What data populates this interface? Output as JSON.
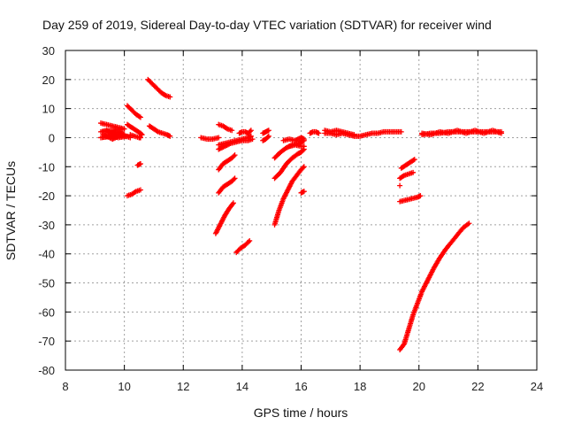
{
  "chart_data": {
    "type": "scatter",
    "title": "Day 259 of 2019, Sidereal Day-to-day VTEC variation (SDTVAR) for receiver wind",
    "xlabel": "GPS time / hours",
    "ylabel": "SDTVAR / TECUs",
    "xlim": [
      8,
      24
    ],
    "ylim": [
      -80,
      30
    ],
    "xticks": [
      "8",
      "10",
      "12",
      "14",
      "16",
      "18",
      "20",
      "22",
      "24"
    ],
    "yticks": [
      "30",
      "20",
      "10",
      "0",
      "-10",
      "-20",
      "-30",
      "-40",
      "-50",
      "-60",
      "-70",
      "-80"
    ],
    "grid": true,
    "marker": "+",
    "color": "#ff0000",
    "series": [
      {
        "x": [
          9.2,
          9.4,
          9.6,
          9.8,
          10.0,
          9.2,
          9.4,
          9.6,
          9.8,
          10.0,
          9.2,
          9.5,
          9.8,
          10.1,
          9.3,
          9.6,
          9.9,
          10.2
        ],
        "y": [
          5,
          4.5,
          4,
          3.5,
          3,
          2,
          2.5,
          1.5,
          2,
          1,
          0,
          0.5,
          0,
          0.5,
          1,
          -0.5,
          1,
          0
        ]
      },
      {
        "x": [
          10.1,
          10.25,
          10.4,
          10.55
        ],
        "y": [
          11,
          9.5,
          8,
          7
        ]
      },
      {
        "x": [
          10.1,
          10.25,
          10.4,
          10.55,
          10.6
        ],
        "y": [
          4.5,
          3.5,
          2.5,
          1.5,
          1
        ]
      },
      {
        "x": [
          10.2,
          10.35,
          10.5,
          10.55
        ],
        "y": [
          1,
          0.5,
          0,
          0
        ]
      },
      {
        "x": [
          10.45,
          10.55
        ],
        "y": [
          -9.5,
          -9
        ]
      },
      {
        "x": [
          10.1,
          10.25,
          10.4,
          10.55
        ],
        "y": [
          -20,
          -19.5,
          -18.5,
          -18
        ]
      },
      {
        "x": [
          10.8,
          10.95,
          11.1,
          11.25,
          11.4,
          11.55
        ],
        "y": [
          20,
          18.5,
          17,
          15.5,
          14.5,
          14
        ]
      },
      {
        "x": [
          10.85,
          11.0,
          11.15,
          11.3,
          11.45,
          11.55
        ],
        "y": [
          4,
          3,
          2,
          1.5,
          1,
          0.5
        ]
      },
      {
        "x": [
          12.6,
          12.8,
          13.0,
          13.2
        ],
        "y": [
          0,
          -0.5,
          -0.5,
          0
        ]
      },
      {
        "x": [
          13.2,
          13.35,
          13.5,
          13.65
        ],
        "y": [
          4.5,
          4,
          3,
          2.5
        ]
      },
      {
        "x": [
          13.2,
          13.4,
          13.6,
          13.8,
          14.0,
          14.2,
          14.35
        ],
        "y": [
          -4,
          -3,
          -2,
          -1.5,
          -1,
          -1,
          -0.5
        ]
      },
      {
        "x": [
          13.2,
          13.4,
          13.6,
          13.8,
          14.0,
          14.2,
          14.3
        ],
        "y": [
          -2.5,
          -2,
          -1.5,
          -1,
          -0.5,
          0,
          0.5
        ]
      },
      {
        "x": [
          13.2,
          13.35,
          13.5,
          13.65,
          13.75
        ],
        "y": [
          -11,
          -9,
          -8,
          -7,
          -6
        ]
      },
      {
        "x": [
          13.2,
          13.35,
          13.5,
          13.65,
          13.75
        ],
        "y": [
          -19,
          -17,
          -16,
          -15,
          -14
        ]
      },
      {
        "x": [
          13.1,
          13.25,
          13.4,
          13.55,
          13.7
        ],
        "y": [
          -33,
          -30,
          -27,
          -24.5,
          -22.5
        ]
      },
      {
        "x": [
          13.8,
          13.95,
          14.1,
          14.25
        ],
        "y": [
          -39.5,
          -38,
          -37,
          -35.5
        ]
      },
      {
        "x": [
          13.9,
          14.0,
          14.1,
          14.2,
          14.3
        ],
        "y": [
          1.5,
          2,
          2,
          1.5,
          2.5
        ]
      },
      {
        "x": [
          14.7,
          14.8,
          14.9
        ],
        "y": [
          1.5,
          2,
          2.5
        ]
      },
      {
        "x": [
          14.7,
          14.8,
          14.9
        ],
        "y": [
          -1,
          -0.5,
          0.5
        ]
      },
      {
        "x": [
          15.1,
          15.3,
          15.5,
          15.7,
          15.9,
          16.0,
          16.1
        ],
        "y": [
          -7,
          -5,
          -3.5,
          -2.5,
          -2,
          -1.5,
          -1
        ]
      },
      {
        "x": [
          15.1,
          15.3,
          15.5,
          15.7,
          15.9,
          16.0,
          16.1
        ],
        "y": [
          -14,
          -12,
          -9,
          -7,
          -5.5,
          -5,
          -4
        ]
      },
      {
        "x": [
          15.1,
          15.25,
          15.4,
          15.55,
          15.7,
          15.85,
          16.0,
          16.1
        ],
        "y": [
          -30,
          -25,
          -21,
          -18,
          -15,
          -13,
          -11,
          -10
        ]
      },
      {
        "x": [
          15.4,
          15.6,
          15.8,
          16.0,
          16.1
        ],
        "y": [
          -1,
          -0.5,
          -1,
          0,
          -0.5
        ]
      },
      {
        "x": [
          15.6,
          15.8,
          16.0,
          16.1
        ],
        "y": [
          -3,
          -2.5,
          -3,
          -3
        ]
      },
      {
        "x": [
          16.0,
          16.1
        ],
        "y": [
          -19,
          -18.5
        ]
      },
      {
        "x": [
          16.3,
          16.4,
          16.5,
          16.6
        ],
        "y": [
          1.5,
          2,
          2,
          1.5
        ]
      },
      {
        "x": [
          16.8,
          17.0,
          17.2,
          17.4,
          17.6,
          17.8,
          18.0,
          18.2,
          18.4,
          18.6,
          18.8,
          19.0,
          19.2,
          19.4
        ],
        "y": [
          1.5,
          1.5,
          1,
          1.5,
          1,
          0.5,
          0.5,
          1,
          1.5,
          1.5,
          2,
          2,
          2,
          2
        ]
      },
      {
        "x": [
          16.8,
          17.0,
          17.2,
          17.4,
          17.6,
          17.8
        ],
        "y": [
          2.5,
          2,
          2.5,
          2,
          1.5,
          1
        ]
      },
      {
        "x": [
          19.4,
          19.55,
          19.7,
          19.85
        ],
        "y": [
          -10.5,
          -9.5,
          -8.5,
          -7.5
        ]
      },
      {
        "x": [
          19.35,
          19.5,
          19.65,
          19.8
        ],
        "y": [
          -14,
          -13,
          -12.5,
          -12
        ]
      },
      {
        "x": [
          19.35,
          19.55,
          19.75,
          19.95,
          20.05
        ],
        "y": [
          -22,
          -21.5,
          -21,
          -20.5,
          -20
        ]
      },
      {
        "x": [
          19.35
        ],
        "y": [
          -16.5
        ]
      },
      {
        "x": [
          19.35,
          19.5,
          19.65,
          19.8,
          19.95,
          20.1,
          20.3,
          20.5,
          20.7,
          20.9,
          21.1,
          21.3,
          21.5,
          21.7
        ],
        "y": [
          -73,
          -71,
          -66,
          -61,
          -57,
          -53,
          -49,
          -45,
          -41.5,
          -38.5,
          -36,
          -33.5,
          -31,
          -29.5
        ]
      },
      {
        "x": [
          20.1,
          20.4,
          20.7,
          21.0,
          21.3,
          21.6,
          21.9,
          22.2,
          22.5,
          22.8
        ],
        "y": [
          1,
          1.5,
          1.5,
          2,
          2,
          2,
          2,
          2,
          2,
          2
        ]
      },
      {
        "x": [
          20.1,
          20.4,
          20.7,
          21.0,
          21.3,
          21.6,
          21.9,
          22.2,
          22.5,
          22.8
        ],
        "y": [
          1.5,
          1,
          2,
          1.5,
          2.5,
          1.5,
          2.5,
          1.5,
          2.5,
          1.5
        ]
      }
    ]
  }
}
